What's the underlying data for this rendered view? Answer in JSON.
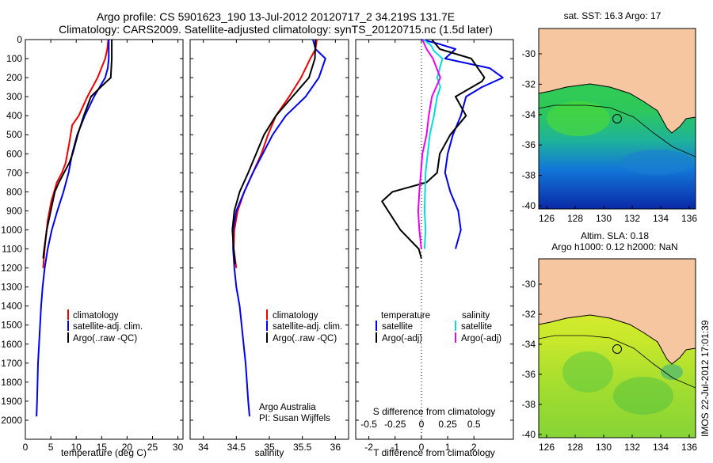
{
  "header": {
    "line1": "Argo profile: CS 5901623_190 13-Jul-2012 20120717_2 34.219S 131.7E",
    "line2": "Climatology: CARS2009. Satellite-adjusted climatology: synTS_20120715.nc (1.5d later)"
  },
  "colors": {
    "climatology": "#ee0000",
    "satellite": "#0000ee",
    "argo": "#000000",
    "sal_satellite": "#00dddd",
    "sal_argo": "#ee00ee",
    "land": "#f5c6a0"
  },
  "chart_data": [
    {
      "type": "line",
      "xlabel": "temperature (deg C)",
      "xlim": [
        0,
        31
      ],
      "xticks": [
        0,
        5,
        10,
        15,
        20,
        25,
        30
      ],
      "ylim": [
        2100,
        0
      ],
      "yticks": [
        0,
        100,
        200,
        300,
        400,
        500,
        600,
        700,
        800,
        900,
        1000,
        1100,
        1200,
        1300,
        1400,
        1500,
        1600,
        1700,
        1800,
        1900,
        2000
      ],
      "legend": {
        "placement": "lower-center",
        "entries": [
          "climatology",
          "satellite-adj. clim.",
          "Argo(..raw -QC)"
        ]
      },
      "series": [
        {
          "name": "climatology",
          "color": "#ee0000",
          "points": [
            [
              16.3,
              0
            ],
            [
              16.1,
              50
            ],
            [
              15.7,
              100
            ],
            [
              14.2,
              200
            ],
            [
              12.2,
              300
            ],
            [
              10.5,
              400
            ],
            [
              9.2,
              450
            ],
            [
              8.6,
              550
            ],
            [
              7.9,
              650
            ],
            [
              7.2,
              700
            ],
            [
              6.2,
              750
            ],
            [
              5.1,
              850
            ],
            [
              4.4,
              950
            ],
            [
              3.8,
              1100
            ],
            [
              3.5,
              1200
            ]
          ]
        },
        {
          "name": "satellite-adj. clim.",
          "color": "#0000ee",
          "points": [
            [
              16.4,
              0
            ],
            [
              16.4,
              50
            ],
            [
              16.4,
              100
            ],
            [
              16.2,
              150
            ],
            [
              15.7,
              200
            ],
            [
              13.5,
              300
            ],
            [
              11.7,
              400
            ],
            [
              10.2,
              500
            ],
            [
              9.2,
              600
            ],
            [
              8.5,
              700
            ],
            [
              7.5,
              800
            ],
            [
              6.3,
              900
            ],
            [
              5.2,
              1000
            ],
            [
              4.4,
              1100
            ],
            [
              3.8,
              1200
            ],
            [
              3.4,
              1300
            ],
            [
              3.1,
              1400
            ],
            [
              2.9,
              1500
            ],
            [
              2.7,
              1600
            ],
            [
              2.5,
              1700
            ],
            [
              2.4,
              1800
            ],
            [
              2.3,
              1900
            ],
            [
              2.2,
              1980
            ]
          ]
        },
        {
          "name": "Argo(..raw -QC)",
          "color": "#000000",
          "points": [
            [
              17.0,
              0
            ],
            [
              17.0,
              100
            ],
            [
              16.8,
              200
            ],
            [
              14.8,
              250
            ],
            [
              12.9,
              300
            ],
            [
              11.5,
              400
            ],
            [
              10.3,
              500
            ],
            [
              9.3,
              600
            ],
            [
              8.6,
              650
            ],
            [
              7.6,
              700
            ],
            [
              6.6,
              750
            ],
            [
              5.8,
              800
            ],
            [
              5.0,
              900
            ],
            [
              4.2,
              1000
            ],
            [
              3.7,
              1100
            ],
            [
              3.5,
              1150
            ]
          ]
        }
      ]
    },
    {
      "type": "line",
      "xlabel": "salinity",
      "xlim": [
        33.8,
        36.2
      ],
      "xticks": [
        34,
        34.5,
        35,
        35.5,
        36
      ],
      "ylim": [
        2100,
        0
      ],
      "legend": {
        "placement": "lower-center",
        "entries": [
          "climatology",
          "satellite-adj. clim.",
          "Argo(..raw -QC)"
        ]
      },
      "annotations": [
        "Argo Australia",
        "PI: Susan Wijffels"
      ],
      "series": [
        {
          "name": "climatology",
          "color": "#ee0000",
          "points": [
            [
              35.72,
              0
            ],
            [
              35.7,
              50
            ],
            [
              35.62,
              100
            ],
            [
              35.48,
              200
            ],
            [
              35.3,
              300
            ],
            [
              35.1,
              400
            ],
            [
              34.98,
              500
            ],
            [
              34.88,
              600
            ],
            [
              34.75,
              700
            ],
            [
              34.62,
              800
            ],
            [
              34.52,
              900
            ],
            [
              34.47,
              1000
            ],
            [
              34.46,
              1100
            ],
            [
              34.5,
              1200
            ]
          ]
        },
        {
          "name": "satellite-adj. clim.",
          "color": "#0000ee",
          "points": [
            [
              35.66,
              0
            ],
            [
              35.7,
              50
            ],
            [
              35.85,
              100
            ],
            [
              35.75,
              200
            ],
            [
              35.55,
              300
            ],
            [
              35.25,
              400
            ],
            [
              35.05,
              500
            ],
            [
              34.9,
              600
            ],
            [
              34.75,
              700
            ],
            [
              34.62,
              800
            ],
            [
              34.5,
              900
            ],
            [
              34.45,
              1000
            ],
            [
              34.45,
              1100
            ],
            [
              34.47,
              1200
            ],
            [
              34.5,
              1300
            ],
            [
              34.55,
              1400
            ],
            [
              34.58,
              1500
            ],
            [
              34.61,
              1600
            ],
            [
              34.64,
              1700
            ],
            [
              34.66,
              1800
            ],
            [
              34.68,
              1900
            ],
            [
              34.7,
              1980
            ]
          ]
        },
        {
          "name": "Argo(..raw -QC)",
          "color": "#000000",
          "points": [
            [
              35.7,
              0
            ],
            [
              35.69,
              100
            ],
            [
              35.6,
              200
            ],
            [
              35.35,
              300
            ],
            [
              35.1,
              400
            ],
            [
              34.92,
              500
            ],
            [
              34.8,
              600
            ],
            [
              34.68,
              700
            ],
            [
              34.55,
              800
            ],
            [
              34.47,
              900
            ],
            [
              34.44,
              1000
            ],
            [
              34.46,
              1100
            ],
            [
              34.48,
              1180
            ]
          ]
        }
      ]
    },
    {
      "type": "line",
      "xlabel": "T difference from climatology",
      "xlabel2": "S difference from climatology",
      "xlim": [
        -2.5,
        3.5
      ],
      "xticks": [
        -2,
        -1,
        0,
        1,
        2
      ],
      "xticks2": [
        -0.5,
        -0.25,
        0,
        0.25,
        0.5
      ],
      "ylim": [
        2100,
        0
      ],
      "legend": {
        "placement": "lower-center",
        "titles": [
          "temperature",
          "salinity"
        ],
        "entries": [
          "satellite",
          "Argo(-adj)",
          "satellite",
          "Argo(-adj)"
        ]
      },
      "series": [
        {
          "name": "temperature satellite",
          "color": "#0000ee",
          "points": [
            [
              0.0,
              0
            ],
            [
              0.6,
              20
            ],
            [
              1.3,
              50
            ],
            [
              0.9,
              100
            ],
            [
              2.6,
              150
            ],
            [
              3.1,
              200
            ],
            [
              2.3,
              250
            ],
            [
              1.7,
              300
            ],
            [
              1.5,
              400
            ],
            [
              1.2,
              500
            ],
            [
              1.0,
              600
            ],
            [
              0.9,
              700
            ],
            [
              1.1,
              800
            ],
            [
              1.4,
              900
            ],
            [
              1.5,
              1000
            ],
            [
              1.3,
              1100
            ]
          ]
        },
        {
          "name": "temperature Argo(-adj)",
          "color": "#000000",
          "points": [
            [
              0.4,
              0
            ],
            [
              0.7,
              50
            ],
            [
              1.9,
              100
            ],
            [
              2.4,
              200
            ],
            [
              2.3,
              220
            ],
            [
              1.3,
              300
            ],
            [
              1.7,
              400
            ],
            [
              1.1,
              500
            ],
            [
              0.7,
              600
            ],
            [
              0.6,
              700
            ],
            [
              0.2,
              750
            ],
            [
              -1.1,
              800
            ],
            [
              -1.5,
              850
            ],
            [
              -0.8,
              1000
            ],
            [
              -0.1,
              1100
            ],
            [
              0.0,
              1150
            ]
          ]
        },
        {
          "name": "salinity satellite",
          "color": "#00dddd",
          "points": [
            [
              0.02,
              0
            ],
            [
              0.09,
              30
            ],
            [
              0.12,
              60
            ],
            [
              0.2,
              100
            ],
            [
              0.15,
              200
            ],
            [
              0.18,
              250
            ],
            [
              0.15,
              300
            ],
            [
              0.12,
              400
            ],
            [
              0.08,
              500
            ],
            [
              0.04,
              700
            ],
            [
              0.03,
              900
            ],
            [
              0.04,
              1000
            ],
            [
              0.03,
              1100
            ]
          ]
        },
        {
          "name": "salinity Argo(-adj)",
          "color": "#ee00ee",
          "points": [
            [
              0.01,
              0
            ],
            [
              0.05,
              50
            ],
            [
              0.11,
              100
            ],
            [
              0.18,
              200
            ],
            [
              0.1,
              300
            ],
            [
              0.07,
              400
            ],
            [
              0.05,
              500
            ],
            [
              0.01,
              600
            ],
            [
              -0.02,
              800
            ],
            [
              -0.03,
              900
            ],
            [
              -0.02,
              1000
            ],
            [
              0.0,
              1100
            ]
          ]
        }
      ]
    }
  ],
  "maps": [
    {
      "title": "sat. SST: 16.3 Argo: 17",
      "xticks": [
        "126",
        "128",
        "130",
        "132",
        "134",
        "136"
      ],
      "yticks": [
        "-30",
        "-32",
        "-34",
        "-36",
        "-38",
        "-40"
      ]
    },
    {
      "title_line1": "Altim. SLA: 0.18",
      "title_line2": "Argo h1000: 0.12 h2000: NaN",
      "xticks": [
        "126",
        "128",
        "130",
        "132",
        "134",
        "136"
      ],
      "yticks": [
        "-30",
        "-32",
        "-34",
        "-36",
        "-38",
        "-40"
      ]
    }
  ],
  "footer": {
    "stamp": "IMOS 22-Jul-2012 17:01:39"
  }
}
